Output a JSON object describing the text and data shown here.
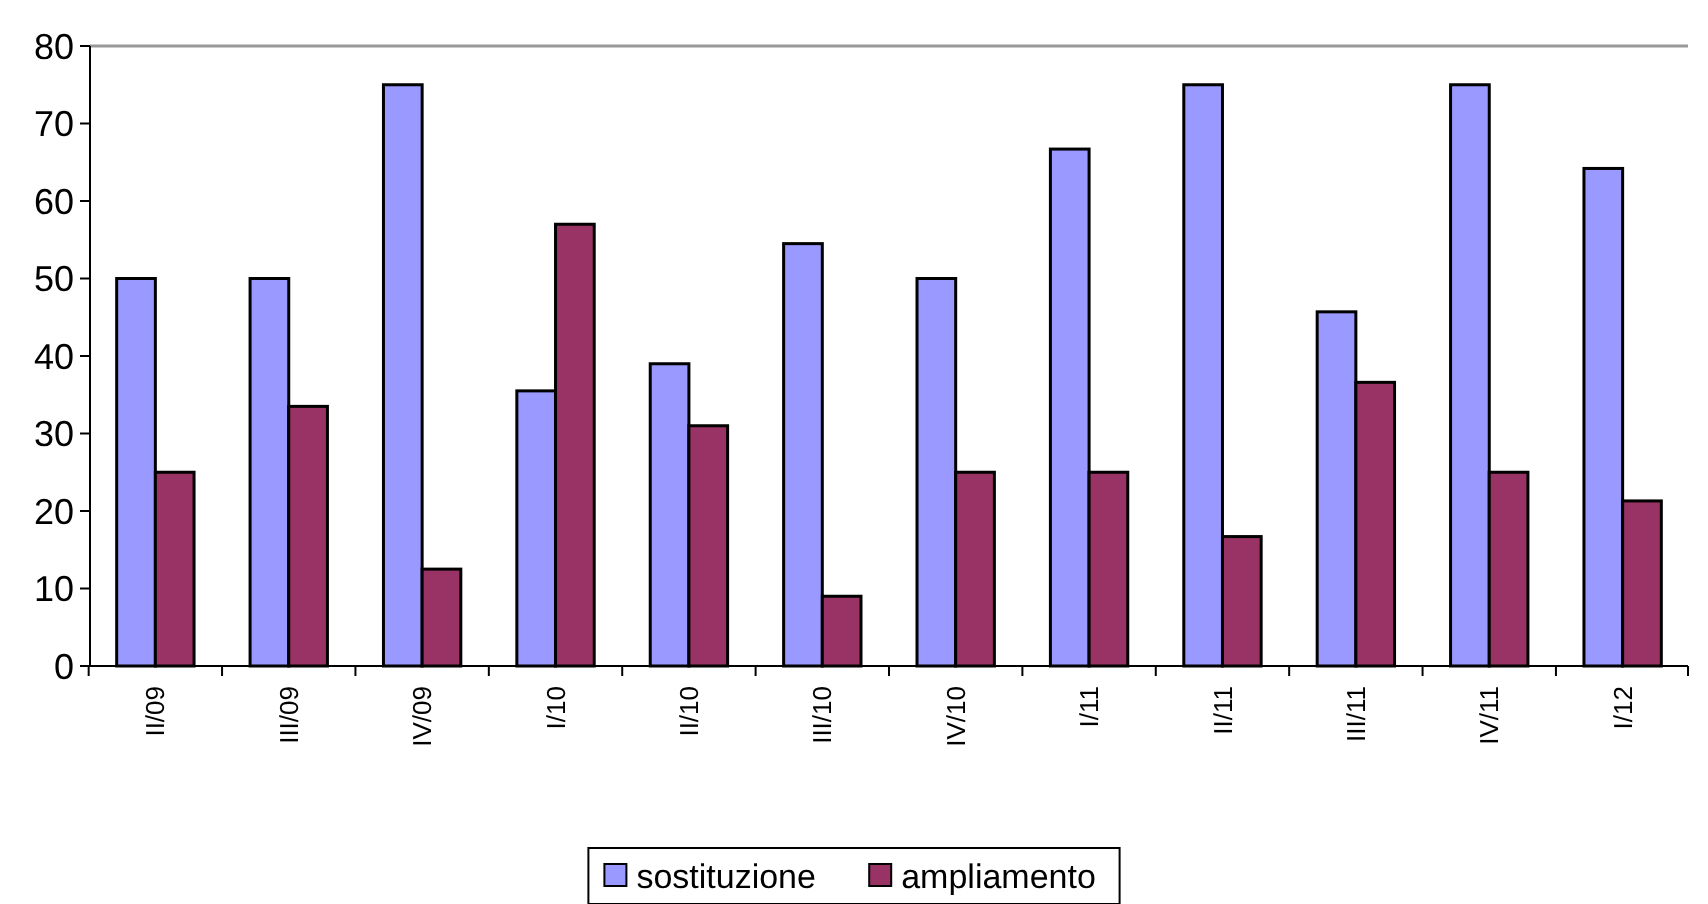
{
  "chart_data": {
    "type": "bar",
    "categories": [
      "II/09",
      "III/09",
      "IV/09",
      "I/10",
      "II/10",
      "III/10",
      "IV/10",
      "I/11",
      "II/11",
      "III/11",
      "IV/11",
      "I/12"
    ],
    "series": [
      {
        "name": "sostituzione",
        "color": "#9999ff",
        "values": [
          50,
          50,
          75,
          35.5,
          39,
          54.5,
          50,
          66.7,
          75,
          45.7,
          75,
          64.2
        ]
      },
      {
        "name": "ampliamento",
        "color": "#993366",
        "values": [
          25,
          33.5,
          12.5,
          57,
          31,
          9,
          25,
          25,
          16.7,
          36.6,
          25,
          21.3
        ]
      }
    ],
    "ylim": [
      0,
      80
    ],
    "yticks": [
      0,
      10,
      20,
      30,
      40,
      50,
      60,
      70,
      80
    ],
    "grid": false,
    "legend": "bottom"
  }
}
